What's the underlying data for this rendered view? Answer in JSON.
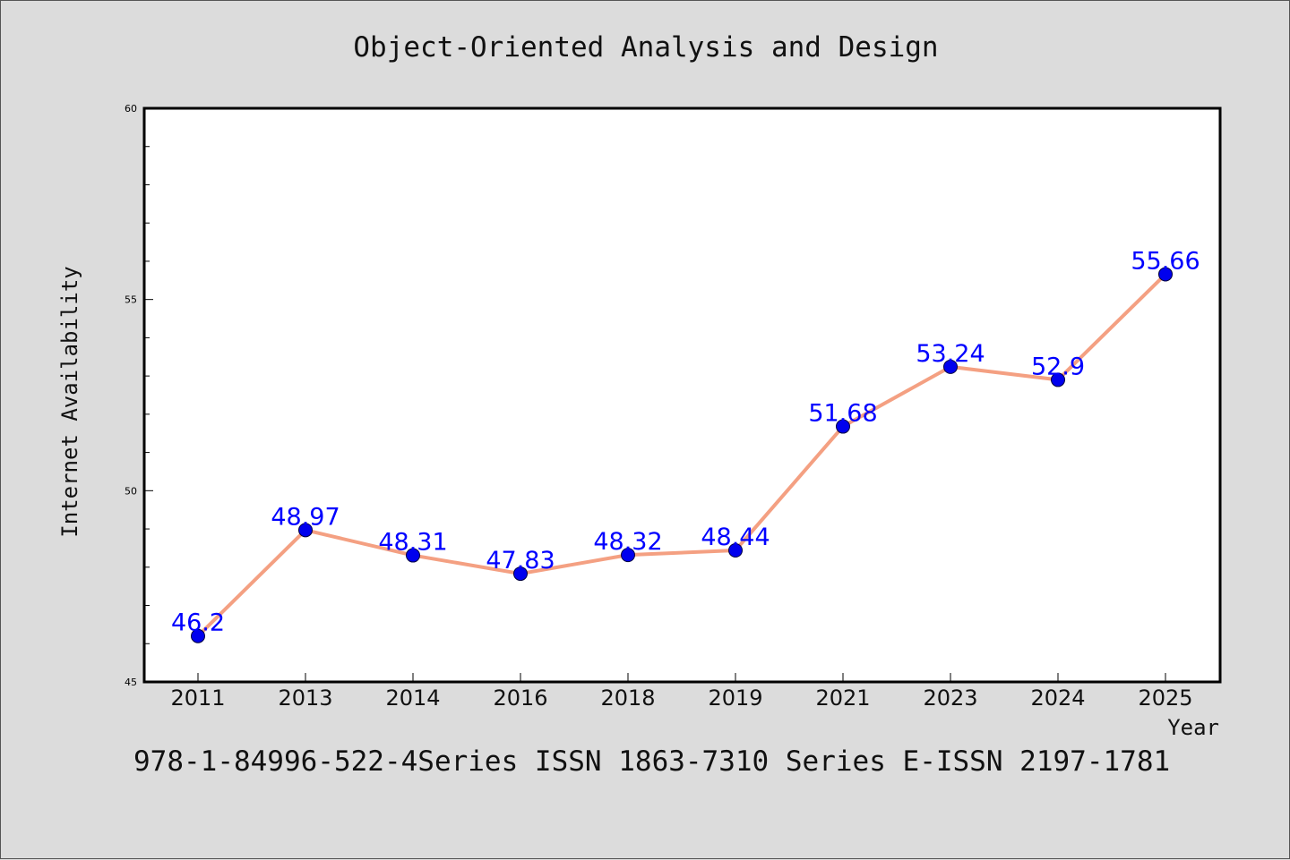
{
  "chart_data": {
    "type": "line",
    "title": "Object-Oriented Analysis and Design",
    "xlabel": "Year",
    "ylabel": "Internet Availability",
    "categories": [
      "2011",
      "2013",
      "2014",
      "2016",
      "2018",
      "2019",
      "2021",
      "2023",
      "2024",
      "2025"
    ],
    "values": [
      46.2,
      48.97,
      48.31,
      47.83,
      48.32,
      48.44,
      51.68,
      53.24,
      52.9,
      55.66
    ],
    "data_labels": [
      "46.2",
      "48.97",
      "48.31",
      "47.83",
      "48.32",
      "48.44",
      "51.68",
      "53.24",
      "52.9",
      "55.66"
    ],
    "ylim": [
      45,
      60
    ],
    "yticks": [
      "45",
      "50",
      "55",
      "60"
    ],
    "grid": false,
    "legend": "none",
    "line_color": "#f4a082",
    "marker_color": "#0000ee",
    "label_color": "#0000ff"
  },
  "footer": "978-1-84996-522-4Series ISSN 1863-7310 Series E-ISSN 2197-1781"
}
